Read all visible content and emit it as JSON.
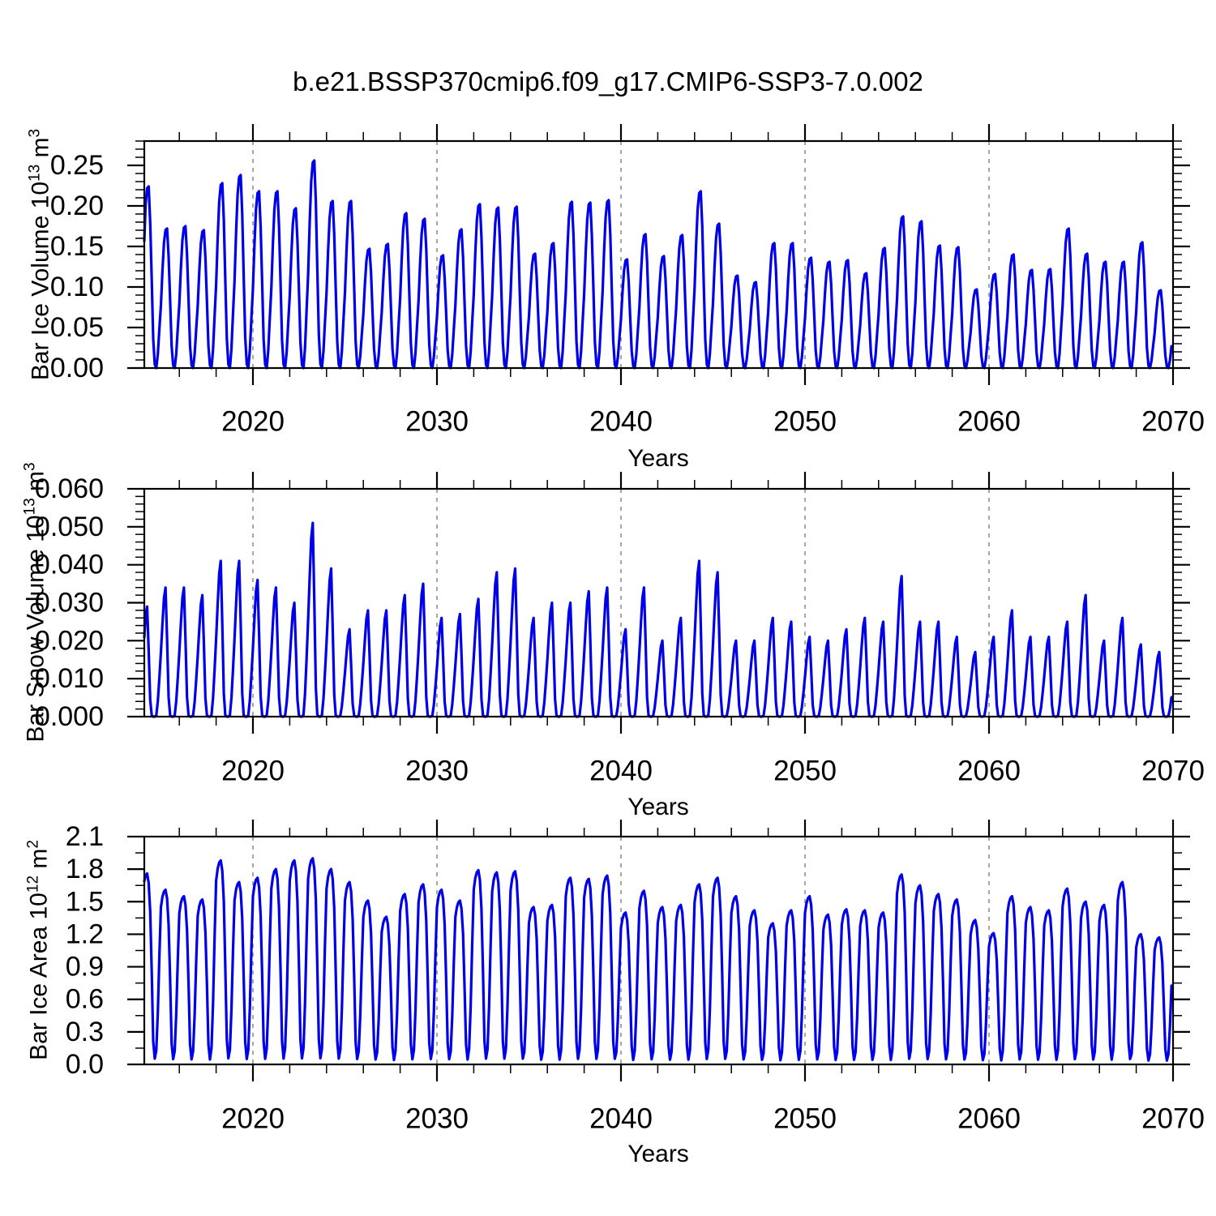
{
  "chart_data": {
    "type": "line",
    "title": "b.e21.BSSP370cmip6.f09_g17.CMIP6-SSP3-7.0.002",
    "xlabel": "Years",
    "x_start_year": 2014,
    "x_end_year": 2070,
    "xtick_values": [
      2020,
      2030,
      2040,
      2050,
      2060,
      2070
    ],
    "xtick_labels": [
      "2020",
      "2030",
      "2040",
      "2050",
      "2060",
      "2070"
    ],
    "x_minor_step_years": 2,
    "grid_years": [
      2020,
      2030,
      2040,
      2050,
      2060
    ],
    "line_color": "#0000E8",
    "grid_color": "#777777",
    "axis_color": "#000000",
    "legend": "none",
    "grid": "dashed vertical at decades",
    "panels": [
      {
        "id": "bar-ice-volume",
        "ylabel": {
          "text": "Bar Ice Volume 10",
          "exp": "13",
          "unit": " m",
          "unit_exp": "3"
        },
        "ylim": [
          0,
          0.28
        ],
        "ytick_values": [
          0.0,
          0.05,
          0.1,
          0.15,
          0.2,
          0.25
        ],
        "ytick_labels": [
          "0.00",
          "0.05",
          "0.10",
          "0.15",
          "0.20",
          "0.25"
        ],
        "y_minor_step": 0.01,
        "annual_min": 0.0,
        "seasonal_profile": [
          0.45,
          0.7,
          0.9,
          0.99,
          1.0,
          0.8,
          0.48,
          0.16,
          0.02,
          0.0,
          0.1,
          0.28
        ],
        "annual_peaks": [
          0.224,
          0.172,
          0.175,
          0.17,
          0.228,
          0.238,
          0.218,
          0.218,
          0.197,
          0.256,
          0.206,
          0.206,
          0.147,
          0.153,
          0.191,
          0.184,
          0.139,
          0.171,
          0.202,
          0.198,
          0.199,
          0.141,
          0.154,
          0.205,
          0.204,
          0.207,
          0.134,
          0.165,
          0.138,
          0.164,
          0.218,
          0.178,
          0.114,
          0.106,
          0.154,
          0.154,
          0.136,
          0.131,
          0.133,
          0.117,
          0.148,
          0.187,
          0.181,
          0.151,
          0.149,
          0.097,
          0.116,
          0.14,
          0.121,
          0.122,
          0.172,
          0.141,
          0.131,
          0.131,
          0.155,
          0.096
        ]
      },
      {
        "id": "bar-snow-volume",
        "ylabel": {
          "text": "Bar Snow Volume 10",
          "exp": "13",
          "unit": " m",
          "unit_exp": "3"
        },
        "ylim": [
          0,
          0.06
        ],
        "ytick_values": [
          0.0,
          0.01,
          0.02,
          0.03,
          0.04,
          0.05,
          0.06
        ],
        "ytick_labels": [
          "0.000",
          "0.010",
          "0.020",
          "0.030",
          "0.040",
          "0.050",
          "0.060"
        ],
        "y_minor_step": 0.002,
        "annual_min": 0.0,
        "seasonal_profile": [
          0.5,
          0.72,
          0.92,
          1.0,
          0.6,
          0.15,
          0.01,
          0.0,
          0.0,
          0.01,
          0.12,
          0.3
        ],
        "annual_peaks": [
          0.029,
          0.034,
          0.034,
          0.032,
          0.041,
          0.041,
          0.036,
          0.034,
          0.03,
          0.051,
          0.039,
          0.023,
          0.028,
          0.028,
          0.032,
          0.035,
          0.026,
          0.027,
          0.031,
          0.038,
          0.039,
          0.026,
          0.03,
          0.03,
          0.033,
          0.034,
          0.023,
          0.034,
          0.02,
          0.026,
          0.041,
          0.038,
          0.02,
          0.02,
          0.026,
          0.025,
          0.021,
          0.02,
          0.023,
          0.026,
          0.025,
          0.037,
          0.025,
          0.025,
          0.021,
          0.017,
          0.021,
          0.028,
          0.021,
          0.021,
          0.025,
          0.032,
          0.02,
          0.026,
          0.019,
          0.017
        ]
      },
      {
        "id": "bar-ice-area",
        "ylabel": {
          "text": "Bar Ice Area 10",
          "exp": "12",
          "unit": " m",
          "unit_exp": "2"
        },
        "ylim": [
          0,
          2.1
        ],
        "ytick_values": [
          0.0,
          0.3,
          0.6,
          0.9,
          1.2,
          1.5,
          1.8,
          2.1
        ],
        "ytick_labels": [
          "0.0",
          "0.3",
          "0.6",
          "0.9",
          "1.2",
          "1.5",
          "1.8",
          "2.1"
        ],
        "y_minor_step": 0.15,
        "annual_min": 0.0,
        "seasonal_profile": [
          0.9,
          0.96,
          0.99,
          1.0,
          0.95,
          0.8,
          0.48,
          0.12,
          0.03,
          0.08,
          0.3,
          0.62
        ],
        "annual_peaks": [
          1.76,
          1.61,
          1.55,
          1.52,
          1.88,
          1.68,
          1.72,
          1.8,
          1.88,
          1.9,
          1.8,
          1.68,
          1.51,
          1.36,
          1.57,
          1.66,
          1.61,
          1.51,
          1.79,
          1.77,
          1.78,
          1.45,
          1.47,
          1.72,
          1.71,
          1.74,
          1.4,
          1.6,
          1.45,
          1.47,
          1.66,
          1.72,
          1.55,
          1.42,
          1.3,
          1.42,
          1.55,
          1.38,
          1.43,
          1.42,
          1.4,
          1.75,
          1.65,
          1.57,
          1.52,
          1.33,
          1.21,
          1.55,
          1.45,
          1.42,
          1.62,
          1.5,
          1.47,
          1.68,
          1.2,
          1.17
        ]
      }
    ]
  }
}
